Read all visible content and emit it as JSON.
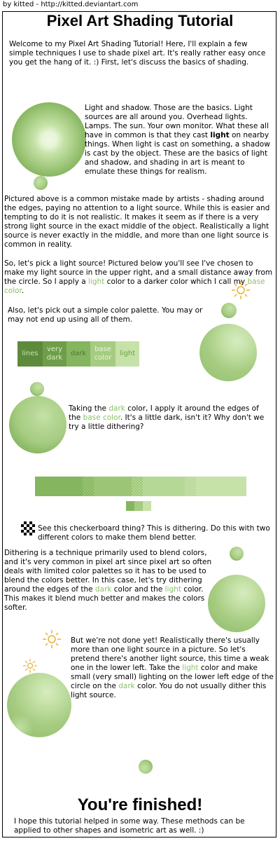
{
  "credit": "by kitted - http://kitted.deviantart.com",
  "title": "Pixel Art Shading Tutorial",
  "colors": {
    "lines": "#5e8a3c",
    "very_dark": "#6e9e4a",
    "dark": "#86b560",
    "base": "#a6cc82",
    "light": "#c6e2a8",
    "highlight": "#e8f5d8",
    "sun": "#e8b030"
  },
  "intro": "Welcome to my Pixel Art Shading Tutorial! Here, I'll explain a few simple techniques I use to shade pixel art. It's really rather easy once you get the hang of it. :) First, let's discuss the basics of shading.",
  "light_shadow": {
    "p1": "Light and shadow. Those are the basics. Light sources are all around you. Overhead lights. Lamps. The sun. Your own monitor. What these all have in common is that they cast",
    "bold": "light",
    "p2": "on nearby things. When light is cast on something, a shadow is cast by the object. These are the basics of light and shadow, and shading in art is meant to emulate these things for realism."
  },
  "mistake": "Pictured above is a common mistake made by artists - shading around the edges, paying no attention to a light source. While this is easier and tempting to do it is not realistic. It makes it seem as if there is a very strong light source in the exact middle of the object. Realistically a light source is never exactly in the middle, and more than one light source is common in reality.",
  "light_source": {
    "p1": "So, let's pick a light source! Pictured below you'll see I've chosen to make my light source in the upper right, and a small distance away from the circle. So I apply a",
    "light_word": "light",
    "p2": "color to a darker color which I call my",
    "base_word": "base color",
    "p3": "."
  },
  "palette_text": "Also, let's pick out a simple color palette. You may or may not end up using all of them.",
  "palette": [
    "lines",
    "very dark",
    "dark",
    "base color",
    "light"
  ],
  "dark_text": {
    "p1": "Taking the",
    "dark_word": "dark",
    "p2": "color, I apply it around the edges of the",
    "base_word": "base color",
    "p3": ". It's a little dark, isn't it? Why don't we try a little dithering?"
  },
  "checker_text": "See this checkerboard thing? This is dithering. Do this with two different colors to make them blend better.",
  "dither_text": {
    "p1": "Dithering is a technique primarily used to blend colors, and it's very common in pixel art since pixel art so often deals with limited color palettes so it has to be used to blend the colors better. In this case, let's try dithering around the edges of the",
    "dark_word": "dark",
    "p2": "color and the",
    "light_word": "light",
    "p3": "color. This makes it blend much better and makes the colors softer."
  },
  "second_light": {
    "p1": "But we're not done yet! Realistically there's usually more than one light source in a picture. So let's pretend there's another light source, this time a weak one in the lower left. Take the",
    "light_word": "light",
    "p2": "color and make small (very small) lighting on the lower left edge of the circle on the",
    "dark_word": "dark",
    "p3": "color. You do not usually dither this light source."
  },
  "finished": "You're finished!",
  "outro": "I hope this tutorial helped in some way. These methods can be applied to other shapes and isometric art as well. :)"
}
